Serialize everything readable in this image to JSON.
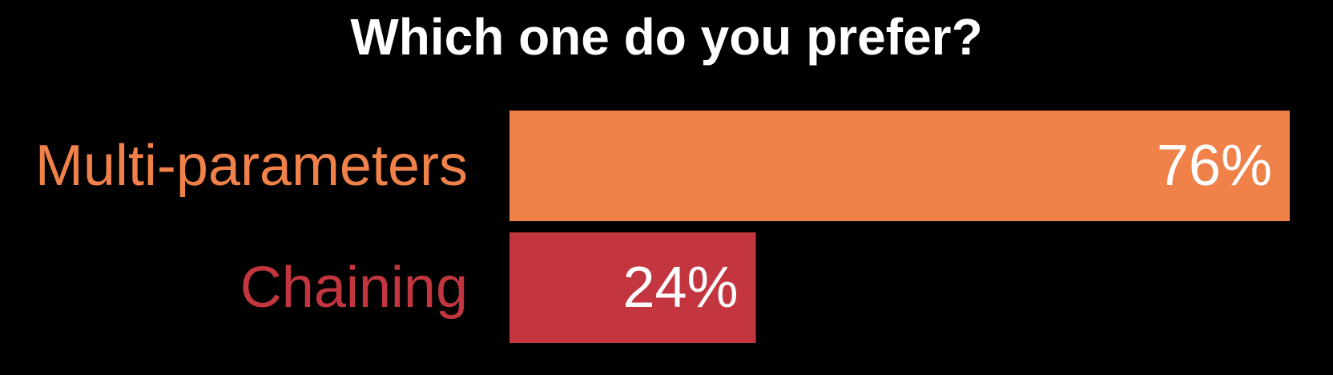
{
  "chart_data": {
    "type": "bar",
    "orientation": "horizontal",
    "title": "Which one do you prefer?",
    "categories": [
      "Multi-parameters",
      "Chaining"
    ],
    "values": [
      76,
      24
    ],
    "value_labels": [
      "76%",
      "24%"
    ],
    "colors": [
      "#EF8149",
      "#C33640"
    ],
    "xlim": [
      0,
      76
    ],
    "grid": false,
    "legend": "none"
  }
}
